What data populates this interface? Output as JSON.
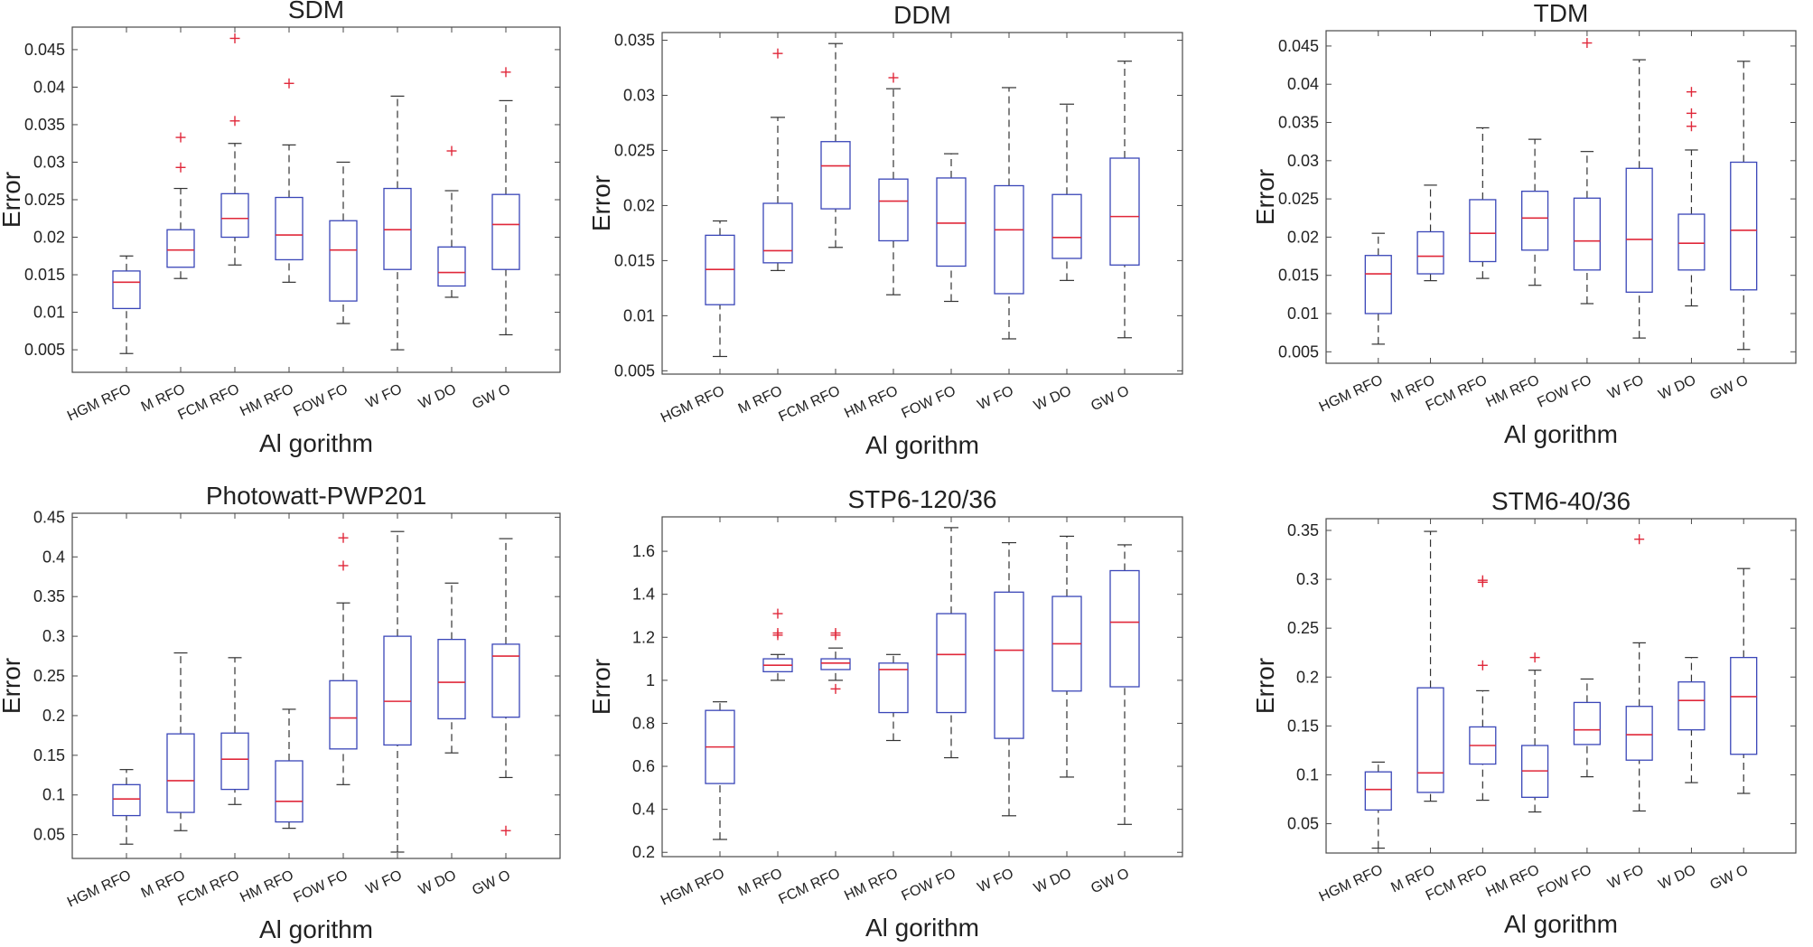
{
  "colors": {
    "box": "#3a46b8",
    "median": "#e0283a",
    "whisker": "#333333",
    "outlier": "#e0283a",
    "axis": "#4a4a4a"
  },
  "chart_data": [
    {
      "type": "boxplot",
      "title": "SDM",
      "xlabel": "Al gorithm",
      "ylabel": "Error",
      "ylim": [
        0.002,
        0.048
      ],
      "yticks": [
        0.005,
        0.01,
        0.015,
        0.02,
        0.025,
        0.03,
        0.035,
        0.04,
        0.045
      ],
      "ytick_labels": [
        "0.005",
        "0.01",
        "0.015",
        "0.02",
        "0.025",
        "0.03",
        "0.035",
        "0.04",
        "0.045"
      ],
      "categories": [
        "HGM RFO",
        "M RFO",
        "FCM RFO",
        "HM RFO",
        "FOW FO",
        "W FO",
        "W DO",
        "GW O"
      ],
      "stats": [
        {
          "min": 0.0045,
          "q1": 0.0105,
          "median": 0.014,
          "q3": 0.0155,
          "max": 0.0175,
          "outliers": []
        },
        {
          "min": 0.0145,
          "q1": 0.016,
          "median": 0.0183,
          "q3": 0.021,
          "max": 0.0265,
          "outliers": [
            0.0293,
            0.0333
          ]
        },
        {
          "min": 0.0163,
          "q1": 0.02,
          "median": 0.0225,
          "q3": 0.0258,
          "max": 0.0325,
          "outliers": [
            0.0355,
            0.0465
          ]
        },
        {
          "min": 0.014,
          "q1": 0.017,
          "median": 0.0203,
          "q3": 0.0253,
          "max": 0.0323,
          "outliers": [
            0.0405
          ]
        },
        {
          "min": 0.0085,
          "q1": 0.0115,
          "median": 0.0183,
          "q3": 0.0222,
          "max": 0.03,
          "outliers": []
        },
        {
          "min": 0.005,
          "q1": 0.0157,
          "median": 0.021,
          "q3": 0.0265,
          "max": 0.0388,
          "outliers": []
        },
        {
          "min": 0.012,
          "q1": 0.0135,
          "median": 0.0153,
          "q3": 0.0187,
          "max": 0.0262,
          "outliers": [
            0.0315
          ]
        },
        {
          "min": 0.007,
          "q1": 0.0157,
          "median": 0.0217,
          "q3": 0.0257,
          "max": 0.0382,
          "outliers": [
            0.042
          ]
        }
      ]
    },
    {
      "type": "boxplot",
      "title": "DDM",
      "xlabel": "Al gorithm",
      "ylabel": "Error",
      "ylim": [
        0.0047,
        0.0357
      ],
      "yticks": [
        0.005,
        0.01,
        0.015,
        0.02,
        0.025,
        0.03,
        0.035
      ],
      "ytick_labels": [
        "0.005",
        "0.01",
        "0.015",
        "0.02",
        "0.025",
        "0.03",
        "0.035"
      ],
      "categories": [
        "HGM RFO",
        "M RFO",
        "FCM RFO",
        "HM RFO",
        "FOW FO",
        "W FO",
        "W DO",
        "GW O"
      ],
      "stats": [
        {
          "min": 0.0063,
          "q1": 0.011,
          "median": 0.0142,
          "q3": 0.0173,
          "max": 0.0186,
          "outliers": []
        },
        {
          "min": 0.0141,
          "q1": 0.0148,
          "median": 0.0159,
          "q3": 0.0202,
          "max": 0.028,
          "outliers": [
            0.0338
          ]
        },
        {
          "min": 0.0162,
          "q1": 0.0197,
          "median": 0.0236,
          "q3": 0.0258,
          "max": 0.0347,
          "outliers": []
        },
        {
          "min": 0.0119,
          "q1": 0.0168,
          "median": 0.0204,
          "q3": 0.0224,
          "max": 0.0306,
          "outliers": [
            0.0316
          ]
        },
        {
          "min": 0.0113,
          "q1": 0.0145,
          "median": 0.0184,
          "q3": 0.0225,
          "max": 0.0247,
          "outliers": []
        },
        {
          "min": 0.0079,
          "q1": 0.012,
          "median": 0.0178,
          "q3": 0.0218,
          "max": 0.0307,
          "outliers": []
        },
        {
          "min": 0.0132,
          "q1": 0.0152,
          "median": 0.0171,
          "q3": 0.021,
          "max": 0.0292,
          "outliers": []
        },
        {
          "min": 0.008,
          "q1": 0.0146,
          "median": 0.019,
          "q3": 0.0243,
          "max": 0.0331,
          "outliers": []
        }
      ]
    },
    {
      "type": "boxplot",
      "title": "TDM",
      "xlabel": "Al gorithm",
      "ylabel": "Error",
      "ylim": [
        0.0035,
        0.047
      ],
      "yticks": [
        0.005,
        0.01,
        0.015,
        0.02,
        0.025,
        0.03,
        0.035,
        0.04,
        0.045
      ],
      "ytick_labels": [
        "0.005",
        "0.01",
        "0.015",
        "0.02",
        "0.025",
        "0.03",
        "0.035",
        "0.04",
        "0.045"
      ],
      "categories": [
        "HGM RFO",
        "M RFO",
        "FCM RFO",
        "HM RFO",
        "FOW FO",
        "W FO",
        "W DO",
        "GW O"
      ],
      "stats": [
        {
          "min": 0.006,
          "q1": 0.01,
          "median": 0.0152,
          "q3": 0.0176,
          "max": 0.0205,
          "outliers": []
        },
        {
          "min": 0.0143,
          "q1": 0.0152,
          "median": 0.0175,
          "q3": 0.0207,
          "max": 0.0268,
          "outliers": []
        },
        {
          "min": 0.0146,
          "q1": 0.0168,
          "median": 0.0205,
          "q3": 0.0249,
          "max": 0.0343,
          "outliers": []
        },
        {
          "min": 0.0137,
          "q1": 0.0183,
          "median": 0.0225,
          "q3": 0.026,
          "max": 0.0328,
          "outliers": []
        },
        {
          "min": 0.0113,
          "q1": 0.0157,
          "median": 0.0195,
          "q3": 0.0251,
          "max": 0.0312,
          "outliers": [
            0.0454
          ]
        },
        {
          "min": 0.0068,
          "q1": 0.0128,
          "median": 0.0197,
          "q3": 0.029,
          "max": 0.0432,
          "outliers": []
        },
        {
          "min": 0.011,
          "q1": 0.0157,
          "median": 0.0192,
          "q3": 0.023,
          "max": 0.0314,
          "outliers": [
            0.0345,
            0.0362,
            0.039
          ]
        },
        {
          "min": 0.0053,
          "q1": 0.0131,
          "median": 0.0209,
          "q3": 0.0298,
          "max": 0.043,
          "outliers": []
        }
      ]
    },
    {
      "type": "boxplot",
      "title": "Photowatt-PWP201",
      "xlabel": "Al gorithm",
      "ylabel": "Error",
      "ylim": [
        0.02,
        0.455
      ],
      "yticks": [
        0.05,
        0.1,
        0.15,
        0.2,
        0.25,
        0.3,
        0.35,
        0.4,
        0.45
      ],
      "ytick_labels": [
        "0.05",
        "0.1",
        "0.15",
        "0.2",
        "0.25",
        "0.3",
        "0.35",
        "0.4",
        "0.45"
      ],
      "categories": [
        "HGM RFO",
        "M RFO",
        "FCM RFO",
        "HM RFO",
        "FOW FO",
        "W FO",
        "W DO",
        "GW O"
      ],
      "stats": [
        {
          "min": 0.038,
          "q1": 0.074,
          "median": 0.095,
          "q3": 0.113,
          "max": 0.132,
          "outliers": []
        },
        {
          "min": 0.055,
          "q1": 0.078,
          "median": 0.118,
          "q3": 0.177,
          "max": 0.279,
          "outliers": []
        },
        {
          "min": 0.088,
          "q1": 0.107,
          "median": 0.145,
          "q3": 0.178,
          "max": 0.273,
          "outliers": []
        },
        {
          "min": 0.058,
          "q1": 0.066,
          "median": 0.092,
          "q3": 0.143,
          "max": 0.208,
          "outliers": []
        },
        {
          "min": 0.113,
          "q1": 0.158,
          "median": 0.197,
          "q3": 0.244,
          "max": 0.342,
          "outliers": [
            0.389,
            0.424
          ]
        },
        {
          "min": 0.028,
          "q1": 0.163,
          "median": 0.218,
          "q3": 0.3,
          "max": 0.432,
          "outliers": []
        },
        {
          "min": 0.153,
          "q1": 0.196,
          "median": 0.242,
          "q3": 0.296,
          "max": 0.367,
          "outliers": []
        },
        {
          "min": 0.122,
          "q1": 0.198,
          "median": 0.275,
          "q3": 0.29,
          "max": 0.423,
          "outliers": [
            0.055
          ]
        }
      ]
    },
    {
      "type": "boxplot",
      "title": "STP6-120/36",
      "xlabel": "Al gorithm",
      "ylabel": "Error",
      "ylim": [
        0.18,
        1.76
      ],
      "yticks": [
        0.2,
        0.4,
        0.6,
        0.8,
        1,
        1.2,
        1.4,
        1.6
      ],
      "ytick_labels": [
        "0.2",
        "0.4",
        "0.6",
        "0.8",
        "1",
        "1.2",
        "1.4",
        "1.6"
      ],
      "categories": [
        "HGM RFO",
        "M RFO",
        "FCM RFO",
        "HM RFO",
        "FOW FO",
        "W FO",
        "W DO",
        "GW O"
      ],
      "stats": [
        {
          "min": 0.26,
          "q1": 0.52,
          "median": 0.69,
          "q3": 0.86,
          "max": 0.9,
          "outliers": []
        },
        {
          "min": 1.0,
          "q1": 1.04,
          "median": 1.07,
          "q3": 1.1,
          "max": 1.12,
          "outliers": [
            1.21,
            1.22,
            1.31
          ]
        },
        {
          "min": 1.0,
          "q1": 1.05,
          "median": 1.08,
          "q3": 1.1,
          "max": 1.15,
          "outliers": [
            0.96,
            1.21,
            1.22
          ]
        },
        {
          "min": 0.72,
          "q1": 0.85,
          "median": 1.05,
          "q3": 1.08,
          "max": 1.12,
          "outliers": []
        },
        {
          "min": 0.64,
          "q1": 0.85,
          "median": 1.12,
          "q3": 1.31,
          "max": 1.71,
          "outliers": []
        },
        {
          "min": 0.37,
          "q1": 0.73,
          "median": 1.14,
          "q3": 1.41,
          "max": 1.64,
          "outliers": []
        },
        {
          "min": 0.55,
          "q1": 0.95,
          "median": 1.17,
          "q3": 1.39,
          "max": 1.67,
          "outliers": []
        },
        {
          "min": 0.33,
          "q1": 0.97,
          "median": 1.27,
          "q3": 1.51,
          "max": 1.63,
          "outliers": []
        }
      ]
    },
    {
      "type": "boxplot",
      "title": "STM6-40/36",
      "xlabel": "Al gorithm",
      "ylabel": "Error",
      "ylim": [
        0.02,
        0.362
      ],
      "yticks": [
        0.05,
        0.1,
        0.15,
        0.2,
        0.25,
        0.3,
        0.35
      ],
      "ytick_labels": [
        "0.05",
        "0.1",
        "0.15",
        "0.2",
        "0.25",
        "0.3",
        "0.35"
      ],
      "categories": [
        "HGM RFO",
        "M RFO",
        "FCM RFO",
        "HM RFO",
        "FOW FO",
        "W FO",
        "W DO",
        "GW O"
      ],
      "stats": [
        {
          "min": 0.025,
          "q1": 0.064,
          "median": 0.085,
          "q3": 0.103,
          "max": 0.113,
          "outliers": []
        },
        {
          "min": 0.073,
          "q1": 0.082,
          "median": 0.102,
          "q3": 0.189,
          "max": 0.349,
          "outliers": []
        },
        {
          "min": 0.074,
          "q1": 0.111,
          "median": 0.13,
          "q3": 0.149,
          "max": 0.186,
          "outliers": [
            0.212,
            0.297,
            0.299
          ]
        },
        {
          "min": 0.062,
          "q1": 0.077,
          "median": 0.104,
          "q3": 0.13,
          "max": 0.207,
          "outliers": [
            0.22
          ]
        },
        {
          "min": 0.098,
          "q1": 0.131,
          "median": 0.146,
          "q3": 0.174,
          "max": 0.198,
          "outliers": []
        },
        {
          "min": 0.063,
          "q1": 0.115,
          "median": 0.141,
          "q3": 0.17,
          "max": 0.235,
          "outliers": [
            0.341
          ]
        },
        {
          "min": 0.092,
          "q1": 0.146,
          "median": 0.176,
          "q3": 0.195,
          "max": 0.22,
          "outliers": []
        },
        {
          "min": 0.081,
          "q1": 0.121,
          "median": 0.18,
          "q3": 0.22,
          "max": 0.311,
          "outliers": []
        }
      ]
    }
  ]
}
